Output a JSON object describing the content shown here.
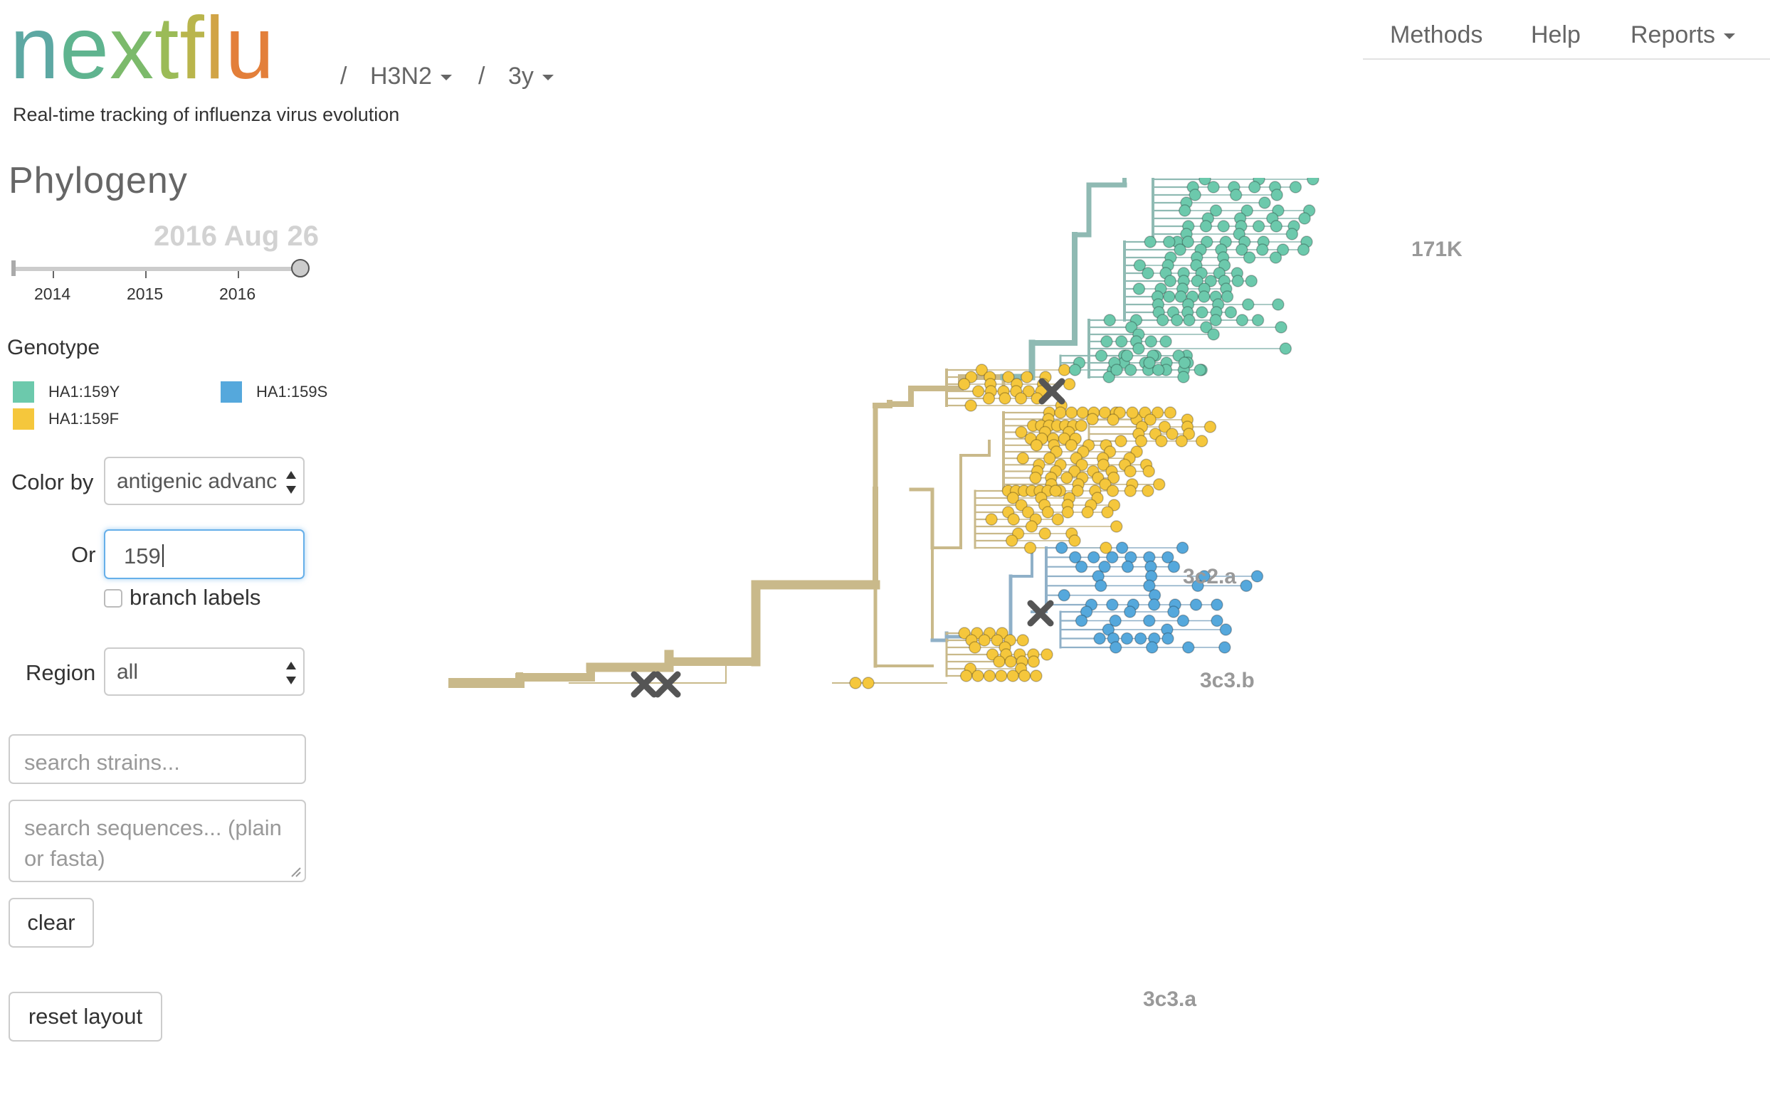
{
  "header": {
    "logo_letters": [
      {
        "ch": "n",
        "color": "#5da8a3"
      },
      {
        "ch": "e",
        "color": "#5fb48f"
      },
      {
        "ch": "x",
        "color": "#7cba6b"
      },
      {
        "ch": "t",
        "color": "#9bbb57"
      },
      {
        "ch": "f",
        "color": "#b9b54c"
      },
      {
        "ch": "l",
        "color": "#d1a446"
      },
      {
        "ch": "u",
        "color": "#e37f3a"
      }
    ],
    "separator1": "/",
    "lineage": "H3N2",
    "separator2": "/",
    "resolution": "3y",
    "tagline": "Real-time tracking of influenza virus evolution"
  },
  "nav": {
    "methods": "Methods",
    "help": "Help",
    "reports": "Reports"
  },
  "sidebar": {
    "title": "Phylogeny",
    "date": "2016 Aug 26",
    "slider_position": 1.0,
    "years": [
      "2014",
      "2015",
      "2016"
    ],
    "genotype_title": "Genotype",
    "legend": [
      {
        "label": "HA1:159Y",
        "color": "#6cc9ac"
      },
      {
        "label": "HA1:159S",
        "color": "#55a8dc"
      },
      {
        "label": "HA1:159F",
        "color": "#f5c73c"
      }
    ],
    "color_by_label": "Color by",
    "color_by_value": "antigenic advanc",
    "or_label": "Or",
    "or_value": "159",
    "branch_labels": "branch labels",
    "branch_labels_checked": false,
    "region_label": "Region",
    "region_value": "all",
    "search_strains_placeholder": "search strains...",
    "search_sequences_placeholder": "search sequences... (plain or fasta)",
    "clear_button": "clear",
    "reset_button": "reset layout"
  },
  "tree": {
    "clade_labels": [
      "171K",
      "3c2.a",
      "3c3.b",
      "3c3.a"
    ],
    "colors": {
      "trunk": "#c9b98a",
      "branch_159Y": "#8fbab3",
      "branch_159S": "#8fb0c8",
      "tip_159Y": "#6cc9ac",
      "tip_159S": "#55a8dc",
      "tip_159F": "#f5c73c",
      "marker": "#555555"
    }
  }
}
